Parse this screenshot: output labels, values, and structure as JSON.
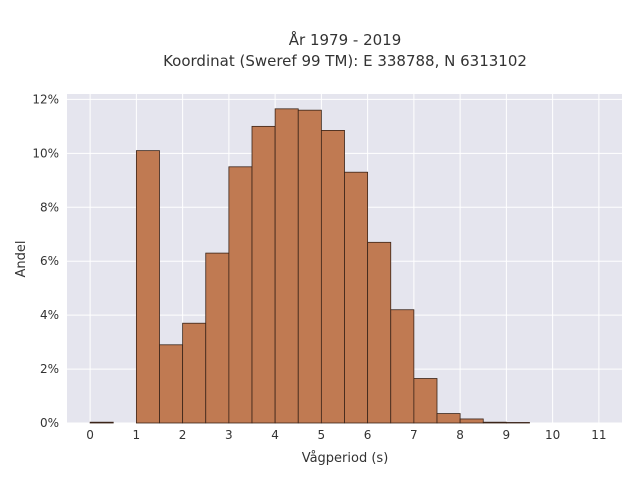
{
  "chart_data": {
    "type": "bar",
    "title_line1": "År 1979 - 2019",
    "title_line2": "Koordinat (Sweref 99 TM): E 338788, N 6313102",
    "xlabel": "Vågperiod (s)",
    "ylabel": "Andel",
    "bin_width": 0.5,
    "xlim": [
      -0.5,
      11.5
    ],
    "ylim": [
      0,
      12.2
    ],
    "x_ticks": [
      0,
      1,
      2,
      3,
      4,
      5,
      6,
      7,
      8,
      9,
      10,
      11
    ],
    "x_tick_labels": [
      "0",
      "1",
      "2",
      "3",
      "4",
      "5",
      "6",
      "7",
      "8",
      "9",
      "10",
      "11"
    ],
    "y_ticks": [
      0,
      2,
      4,
      6,
      8,
      10,
      12
    ],
    "y_tick_labels": [
      "0%",
      "2%",
      "4%",
      "6%",
      "8%",
      "10%",
      "12%"
    ],
    "grid": true,
    "bar_color": "#c07a52",
    "bar_edge_color": "#3a2418",
    "plot_background": "#e5e5ee",
    "bins": [
      {
        "x0": 0.0,
        "x1": 0.5,
        "value": 0.03
      },
      {
        "x0": 1.0,
        "x1": 1.5,
        "value": 10.1
      },
      {
        "x0": 1.5,
        "x1": 2.0,
        "value": 2.9
      },
      {
        "x0": 2.0,
        "x1": 2.5,
        "value": 3.7
      },
      {
        "x0": 2.5,
        "x1": 3.0,
        "value": 6.3
      },
      {
        "x0": 3.0,
        "x1": 3.5,
        "value": 9.5
      },
      {
        "x0": 3.5,
        "x1": 4.0,
        "value": 11.0
      },
      {
        "x0": 4.0,
        "x1": 4.5,
        "value": 11.65
      },
      {
        "x0": 4.5,
        "x1": 5.0,
        "value": 11.6
      },
      {
        "x0": 5.0,
        "x1": 5.5,
        "value": 10.85
      },
      {
        "x0": 5.5,
        "x1": 6.0,
        "value": 9.3
      },
      {
        "x0": 6.0,
        "x1": 6.5,
        "value": 6.7
      },
      {
        "x0": 6.5,
        "x1": 7.0,
        "value": 4.2
      },
      {
        "x0": 7.0,
        "x1": 7.5,
        "value": 1.65
      },
      {
        "x0": 7.5,
        "x1": 8.0,
        "value": 0.35
      },
      {
        "x0": 8.0,
        "x1": 8.5,
        "value": 0.15
      },
      {
        "x0": 8.5,
        "x1": 9.0,
        "value": 0.03
      },
      {
        "x0": 9.0,
        "x1": 9.5,
        "value": 0.02
      }
    ]
  }
}
